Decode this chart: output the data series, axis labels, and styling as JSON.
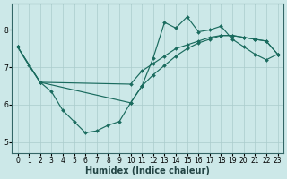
{
  "xlabel": "Humidex (Indice chaleur)",
  "xlim_min": -0.5,
  "xlim_max": 23.5,
  "ylim_min": 4.7,
  "ylim_max": 8.7,
  "xticks": [
    0,
    1,
    2,
    3,
    4,
    5,
    6,
    7,
    8,
    9,
    10,
    11,
    12,
    13,
    14,
    15,
    16,
    17,
    18,
    19,
    20,
    21,
    22,
    23
  ],
  "yticks": [
    5,
    6,
    7,
    8
  ],
  "bg_color": "#cce8e8",
  "grid_color": "#aacccc",
  "line_color": "#1a6b5e",
  "figsize": [
    3.2,
    2.0
  ],
  "dpi": 100,
  "label_fontsize": 7,
  "tick_fontsize": 5.5,
  "line1_x": [
    0,
    1,
    2,
    3,
    4,
    5,
    6,
    7,
    8,
    9,
    10,
    11,
    12,
    13,
    14,
    15,
    16,
    17,
    18,
    19,
    20,
    21,
    22,
    23
  ],
  "line1_y": [
    7.55,
    7.05,
    6.6,
    6.35,
    5.85,
    5.55,
    5.25,
    5.3,
    5.45,
    5.55,
    6.05,
    6.5,
    7.25,
    8.2,
    8.05,
    8.35,
    7.95,
    8.0,
    8.1,
    7.75,
    7.55,
    7.35,
    7.2,
    7.35
  ],
  "line2_x": [
    0,
    2,
    10,
    11,
    12,
    13,
    14,
    15,
    16,
    17,
    18,
    19,
    20,
    21,
    22,
    23
  ],
  "line2_y": [
    7.55,
    6.6,
    6.55,
    6.9,
    7.1,
    7.3,
    7.5,
    7.6,
    7.7,
    7.8,
    7.85,
    7.85,
    7.8,
    7.75,
    7.7,
    7.35
  ],
  "line3_x": [
    0,
    2,
    10,
    11,
    12,
    13,
    14,
    15,
    16,
    17,
    18,
    19,
    20,
    21,
    22,
    23
  ],
  "line3_y": [
    7.55,
    6.6,
    6.05,
    6.5,
    6.8,
    7.05,
    7.3,
    7.5,
    7.65,
    7.75,
    7.85,
    7.85,
    7.8,
    7.75,
    7.7,
    7.35
  ]
}
